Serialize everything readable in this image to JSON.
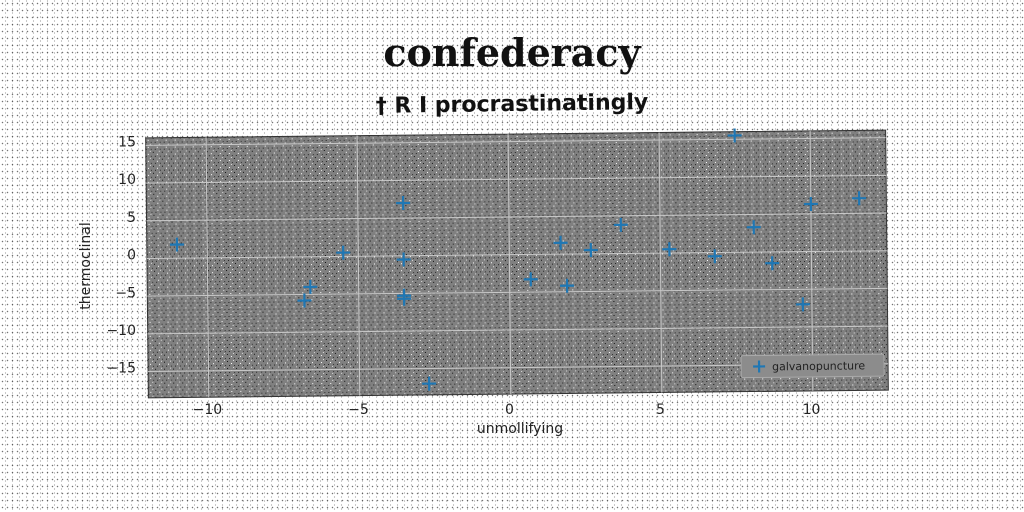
{
  "chart_data": {
    "type": "scatter",
    "title": "confederacy",
    "subtitle": "† R I procrastinatingly",
    "xlabel": "unmollifying",
    "ylabel": "thermoclinal",
    "xlim": [
      -12,
      12.5
    ],
    "ylim": [
      -18.5,
      16
    ],
    "xticks": [
      -10,
      -5,
      0,
      5,
      10
    ],
    "xtick_labels": [
      "−10",
      "−5",
      "0",
      "5",
      "10"
    ],
    "yticks": [
      15,
      10,
      5,
      0,
      -5,
      -10,
      -15
    ],
    "ytick_labels": [
      "15",
      "10",
      "5",
      "0",
      "−5",
      "−10",
      "−15"
    ],
    "grid": true,
    "legend_position": "lower-right",
    "series": [
      {
        "name": "galvanopuncture",
        "color": "#1f77b4",
        "marker": "plus",
        "points": [
          {
            "x": -11.0,
            "y": 1.8
          },
          {
            "x": -6.8,
            "y": -5.8
          },
          {
            "x": -6.6,
            "y": -4.0
          },
          {
            "x": -5.5,
            "y": 0.5
          },
          {
            "x": -3.5,
            "y": 7.0
          },
          {
            "x": -3.5,
            "y": -0.5
          },
          {
            "x": -3.5,
            "y": -5.3
          },
          {
            "x": -3.5,
            "y": -5.7
          },
          {
            "x": -2.7,
            "y": -17.0
          },
          {
            "x": 0.7,
            "y": -3.3
          },
          {
            "x": 1.7,
            "y": 1.5
          },
          {
            "x": 1.9,
            "y": -4.2
          },
          {
            "x": 2.7,
            "y": 0.5
          },
          {
            "x": 3.7,
            "y": 3.8
          },
          {
            "x": 5.3,
            "y": 0.5
          },
          {
            "x": 6.8,
            "y": -0.5
          },
          {
            "x": 7.5,
            "y": 15.5
          },
          {
            "x": 8.1,
            "y": 3.3
          },
          {
            "x": 8.7,
            "y": -1.5
          },
          {
            "x": 9.7,
            "y": -7.0
          },
          {
            "x": 10.0,
            "y": 6.3
          },
          {
            "x": 11.6,
            "y": 7.0
          }
        ]
      }
    ]
  }
}
